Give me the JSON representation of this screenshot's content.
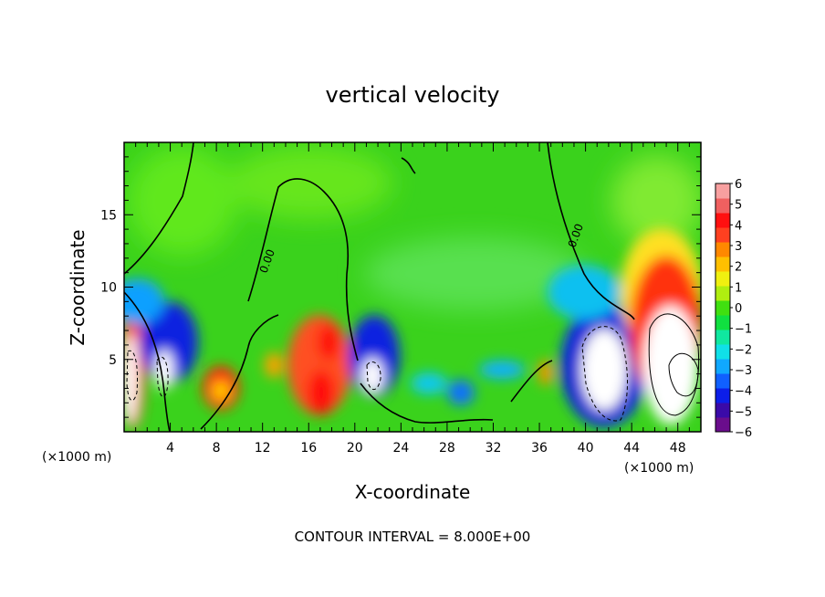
{
  "chart_data": {
    "type": "heatmap",
    "title": "vertical velocity",
    "xlabel": "X-coordinate",
    "ylabel": "Z-coordinate",
    "x_unit": "(×1000 m)",
    "z_unit": "(×1000 m)",
    "xlim": [
      0,
      50
    ],
    "ylim": [
      0,
      20
    ],
    "x_ticks": [
      4,
      8,
      12,
      16,
      20,
      24,
      28,
      32,
      36,
      40,
      44,
      48
    ],
    "y_ticks": [
      5,
      10,
      15
    ],
    "contour_labels": [
      "0.00",
      "0.00"
    ],
    "footer": "CONTOUR INTERVAL = 8.000E+00",
    "colorbar": {
      "labels": [
        "6",
        "5",
        "4",
        "3",
        "2",
        "1",
        "0",
        "−1",
        "−2",
        "−3",
        "−4",
        "−5",
        "−6"
      ],
      "colors": [
        "#6a0d8c",
        "#3a0aa8",
        "#0c1ee8",
        "#1060ff",
        "#10a8ff",
        "#10e0e8",
        "#10e8a0",
        "#10e040",
        "#40e010",
        "#b0ee10",
        "#f0f010",
        "#ffc000",
        "#ff8800",
        "#ff4020",
        "#ff1010",
        "#f06060",
        "#f8a0a0"
      ]
    },
    "features": [
      {
        "kind": "updraft",
        "x": 0.8,
        "z": 4.5
      },
      {
        "kind": "downdraft",
        "x": 3.8,
        "z": 5.8
      },
      {
        "kind": "updraft",
        "x": 8.5,
        "z": 3.0
      },
      {
        "kind": "updraft",
        "x": 17.5,
        "z": 4.0
      },
      {
        "kind": "downdraft",
        "x": 21.5,
        "z": 5.0
      },
      {
        "kind": "downdraft",
        "x": 40.5,
        "z": 5.5
      },
      {
        "kind": "updraft",
        "x": 46.5,
        "z": 8.5
      }
    ]
  }
}
